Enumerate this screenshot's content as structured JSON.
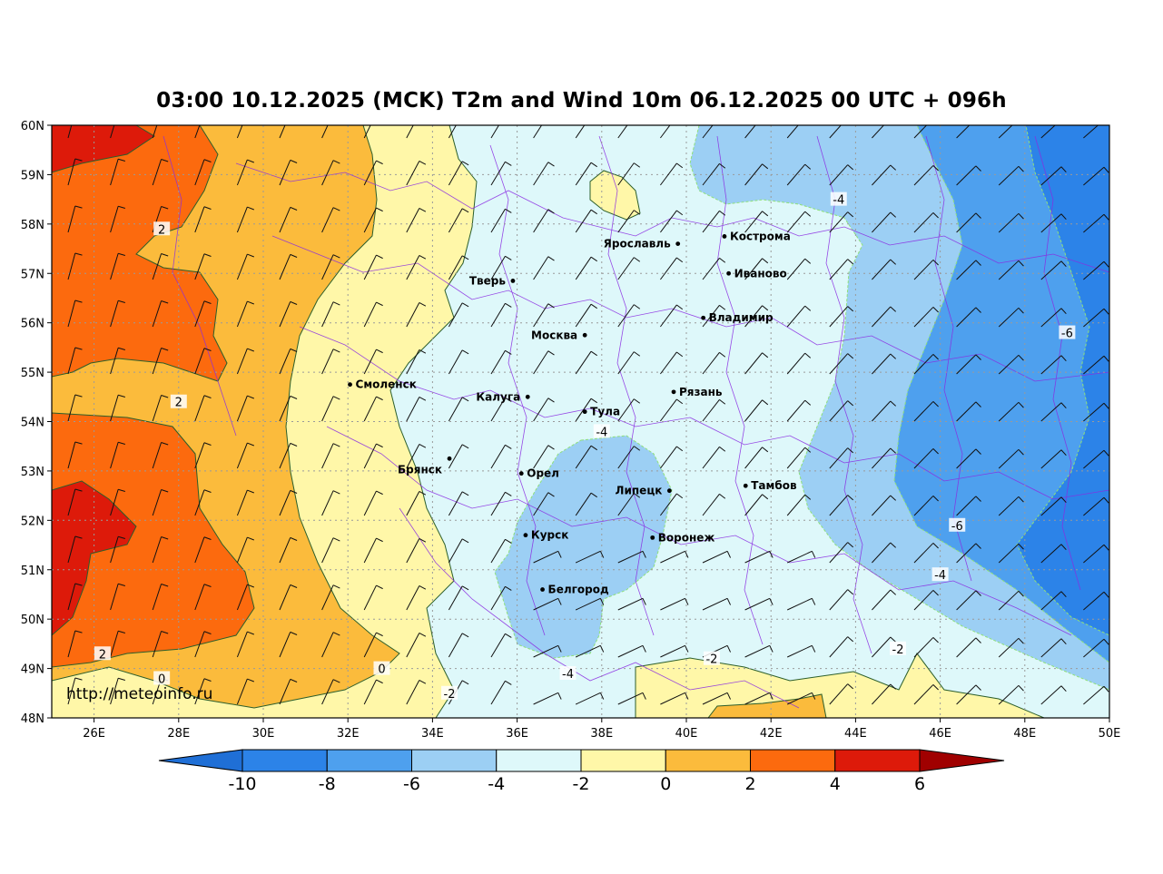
{
  "title": "03:00 10.12.2025 (MCK) T2m and Wind 10m 06.12.2025 00 UTC + 096h",
  "watermark": "http://meteoinfo.ru",
  "lat_ticks": [
    "60N",
    "59N",
    "58N",
    "57N",
    "56N",
    "55N",
    "54N",
    "53N",
    "52N",
    "51N",
    "50N",
    "49N",
    "48N"
  ],
  "lon_ticks": [
    "26E",
    "28E",
    "30E",
    "32E",
    "34E",
    "36E",
    "38E",
    "40E",
    "42E",
    "44E",
    "46E",
    "48E",
    "50E"
  ],
  "colorbar": {
    "labels": [
      "-10",
      "-8",
      "-6",
      "-4",
      "-2",
      "0",
      "2",
      "4",
      "6"
    ],
    "colors": [
      "#1f6fd6",
      "#2c83e8",
      "#4ea0ee",
      "#9ccff4",
      "#def8fa",
      "#fff7a8",
      "#fbbb3c",
      "#fc6a0e",
      "#dd1a0a",
      "#a00000"
    ]
  },
  "cities": [
    {
      "name": "Ярославль",
      "lon": 39.8,
      "lat": 57.6
    },
    {
      "name": "Кострома",
      "lon": 40.9,
      "lat": 57.75
    },
    {
      "name": "Иваново",
      "lon": 41.0,
      "lat": 57.0
    },
    {
      "name": "Тверь",
      "lon": 35.9,
      "lat": 56.85
    },
    {
      "name": "Владимир",
      "lon": 40.4,
      "lat": 56.1
    },
    {
      "name": "Москва",
      "lon": 37.6,
      "lat": 55.75
    },
    {
      "name": "Смоленск",
      "lon": 32.05,
      "lat": 54.75
    },
    {
      "name": "Калуга",
      "lon": 36.25,
      "lat": 54.5
    },
    {
      "name": "Рязань",
      "lon": 39.7,
      "lat": 54.6
    },
    {
      "name": "Тула",
      "lon": 37.6,
      "lat": 54.2
    },
    {
      "name": "Брянск",
      "lon": 34.4,
      "lat": 53.25
    },
    {
      "name": "Орел",
      "lon": 36.1,
      "lat": 52.95
    },
    {
      "name": "Липецк",
      "lon": 39.6,
      "lat": 52.6
    },
    {
      "name": "Тамбов",
      "lon": 41.4,
      "lat": 52.7
    },
    {
      "name": "Курск",
      "lon": 36.2,
      "lat": 51.7
    },
    {
      "name": "Воронеж",
      "lon": 39.2,
      "lat": 51.65
    },
    {
      "name": "Белгород",
      "lon": 36.6,
      "lat": 50.6
    }
  ],
  "contour_labels": [
    {
      "text": "2",
      "lon": 27.6,
      "lat": 57.9
    },
    {
      "text": "2",
      "lon": 28.0,
      "lat": 54.4
    },
    {
      "text": "2",
      "lon": 26.2,
      "lat": 49.3
    },
    {
      "text": "0",
      "lon": 27.6,
      "lat": 48.8
    },
    {
      "text": "0",
      "lon": 32.8,
      "lat": 49.0
    },
    {
      "text": "-2",
      "lon": 34.4,
      "lat": 48.5
    },
    {
      "text": "-4",
      "lon": 43.6,
      "lat": 58.5
    },
    {
      "text": "-6",
      "lon": 49.0,
      "lat": 55.8
    },
    {
      "text": "-4",
      "lon": 38.0,
      "lat": 53.8
    },
    {
      "text": "-6",
      "lon": 46.4,
      "lat": 51.9
    },
    {
      "text": "-4",
      "lon": 46.0,
      "lat": 50.9
    },
    {
      "text": "-2",
      "lon": 40.6,
      "lat": 49.2
    },
    {
      "text": "-4",
      "lon": 37.2,
      "lat": 48.9
    },
    {
      "text": "-2",
      "lon": 45.0,
      "lat": 49.4
    }
  ]
}
